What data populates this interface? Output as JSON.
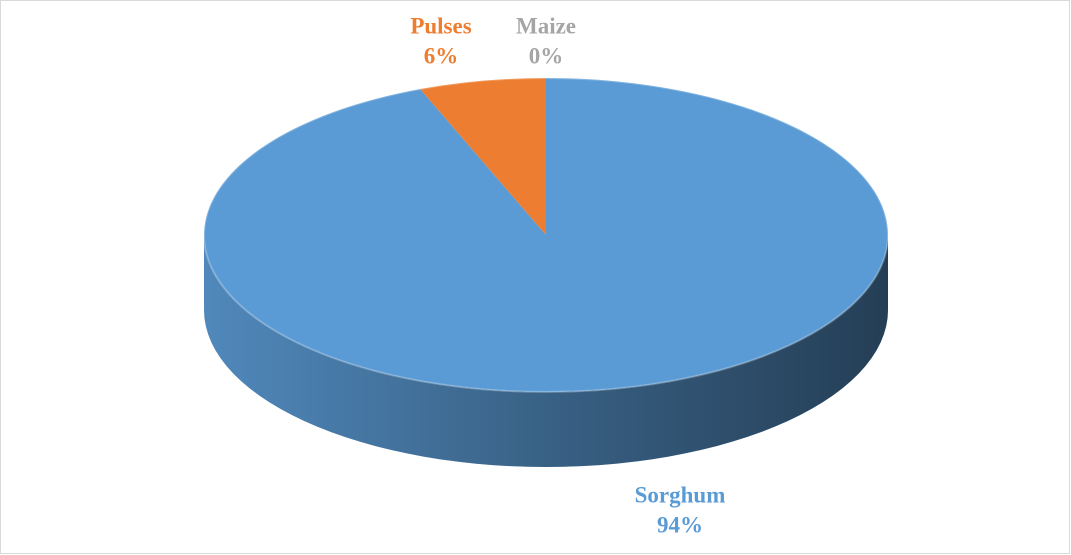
{
  "chart_data": {
    "type": "pie",
    "categories": [
      "Sorghum",
      "Pulses",
      "Maize"
    ],
    "values": [
      94,
      6,
      0
    ],
    "value_labels": [
      "94%",
      "6%",
      "0%"
    ],
    "colors": [
      "#5b9bd5",
      "#ed7d31",
      "#a5a5a5"
    ]
  }
}
